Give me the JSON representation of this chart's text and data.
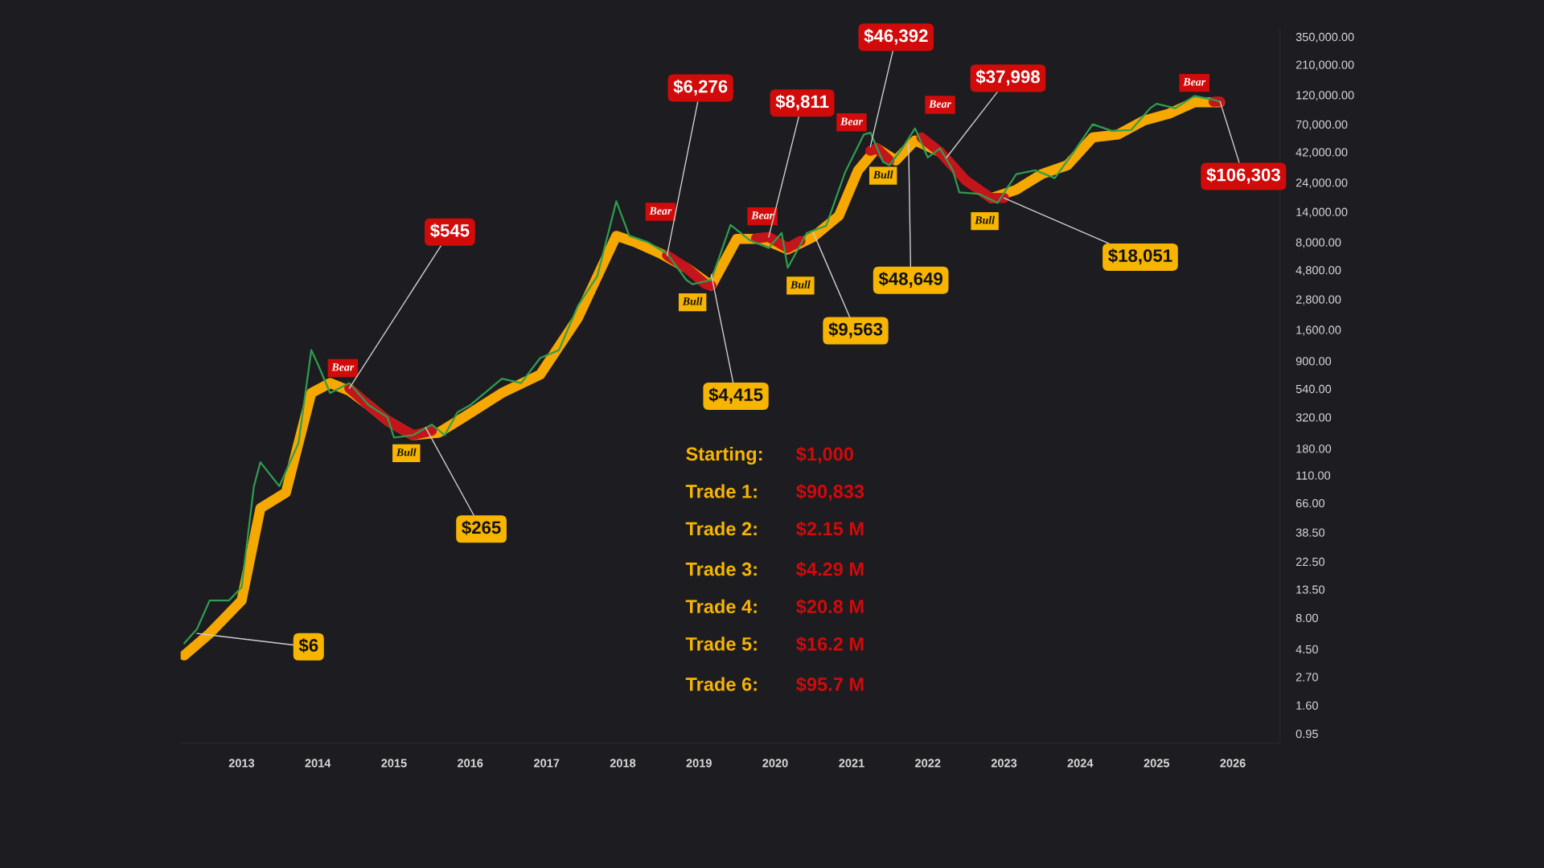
{
  "chart_data": {
    "type": "line",
    "log": "y",
    "grid": false,
    "xlim": [
      "2012-03-15",
      "2026-08-15"
    ],
    "ylim": [
      0.8,
      400000
    ],
    "xticks": [
      "2013",
      "2014",
      "2015",
      "2016",
      "2017",
      "2018",
      "2019",
      "2020",
      "2021",
      "2022",
      "2023",
      "2024",
      "2025",
      "2026"
    ],
    "yticks": [
      {
        "value": 0.95,
        "label": "0.95"
      },
      {
        "value": 1.6,
        "label": "1.60"
      },
      {
        "value": 2.7,
        "label": "2.70"
      },
      {
        "value": 4.5,
        "label": "4.50"
      },
      {
        "value": 8,
        "label": "8.00"
      },
      {
        "value": 13.5,
        "label": "13.50"
      },
      {
        "value": 22.5,
        "label": "22.50"
      },
      {
        "value": 38.5,
        "label": "38.50"
      },
      {
        "value": 66,
        "label": "66.00"
      },
      {
        "value": 110,
        "label": "110.00"
      },
      {
        "value": 180,
        "label": "180.00"
      },
      {
        "value": 320,
        "label": "320.00"
      },
      {
        "value": 540,
        "label": "540.00"
      },
      {
        "value": 900,
        "label": "900.00"
      },
      {
        "value": 1600,
        "label": "1,600.00"
      },
      {
        "value": 2800,
        "label": "2,800.00"
      },
      {
        "value": 4800,
        "label": "4,800.00"
      },
      {
        "value": 8000,
        "label": "8,000.00"
      },
      {
        "value": 14000,
        "label": "14,000.00"
      },
      {
        "value": 24000,
        "label": "24,000.00"
      },
      {
        "value": 42000,
        "label": "42,000.00"
      },
      {
        "value": 70000,
        "label": "70,000.00"
      },
      {
        "value": 120000,
        "label": "120,000.00"
      },
      {
        "value": 210000,
        "label": "210,000.00"
      },
      {
        "value": 350000,
        "label": "350,000.00"
      }
    ],
    "series": [
      {
        "color": "#2e9e4f",
        "x": [
          "2012-04",
          "2012-06",
          "2012-08",
          "2012-11",
          "2013-01",
          "2013-03",
          "2013-04",
          "2013-07",
          "2013-10",
          "2013-12",
          "2014-01",
          "2014-03",
          "2014-06",
          "2014-09",
          "2014-12",
          "2015-01",
          "2015-04",
          "2015-07",
          "2015-09",
          "2015-11",
          "2016-01",
          "2016-06",
          "2016-09",
          "2016-12",
          "2017-03",
          "2017-06",
          "2017-09",
          "2017-12",
          "2018-02",
          "2018-05",
          "2018-08",
          "2018-11",
          "2018-12",
          "2019-03",
          "2019-06",
          "2019-09",
          "2019-12",
          "2020-02",
          "2020-03",
          "2020-06",
          "2020-09",
          "2020-12",
          "2021-03",
          "2021-04",
          "2021-06",
          "2021-07",
          "2021-09",
          "2021-11",
          "2022-01",
          "2022-03",
          "2022-05",
          "2022-06",
          "2022-09",
          "2022-12",
          "2023-03",
          "2023-06",
          "2023-09",
          "2023-12",
          "2024-03",
          "2024-06",
          "2024-09",
          "2024-12",
          "2025-01",
          "2025-04",
          "2025-07",
          "2025-10",
          "2025-11"
        ],
        "values": [
          5,
          6.5,
          11,
          11,
          14,
          90,
          140,
          90,
          200,
          1100,
          850,
          500,
          600,
          400,
          320,
          220,
          230,
          280,
          230,
          350,
          400,
          650,
          600,
          950,
          1100,
          2500,
          4300,
          17000,
          9000,
          8000,
          6500,
          4000,
          3700,
          4000,
          11000,
          8300,
          7200,
          9500,
          5000,
          9500,
          10800,
          29000,
          58000,
          60000,
          35000,
          33000,
          45000,
          65000,
          38000,
          45000,
          30000,
          20000,
          19500,
          16500,
          28000,
          30000,
          26000,
          42000,
          70000,
          62000,
          63000,
          94000,
          102000,
          94000,
          118000,
          110000,
          106000
        ]
      },
      {
        "color": "#f5a800",
        "x": [
          "2012-04",
          "2012-08",
          "2013-01",
          "2013-04",
          "2013-08",
          "2013-12",
          "2014-03",
          "2014-06",
          "2014-09",
          "2014-12",
          "2015-04",
          "2015-08",
          "2015-12",
          "2016-06",
          "2016-12",
          "2017-06",
          "2017-12",
          "2018-03",
          "2018-07",
          "2018-11",
          "2019-03",
          "2019-07",
          "2019-11",
          "2020-03",
          "2020-07",
          "2020-11",
          "2021-02",
          "2021-05",
          "2021-08",
          "2021-11",
          "2022-03",
          "2022-07",
          "2022-11",
          "2023-03",
          "2023-07",
          "2023-11",
          "2024-03",
          "2024-07",
          "2024-11",
          "2025-03",
          "2025-07",
          "2025-11"
        ],
        "values": [
          4,
          6,
          11,
          60,
          80,
          500,
          600,
          520,
          400,
          300,
          230,
          240,
          320,
          500,
          700,
          2000,
          9000,
          8000,
          6500,
          5000,
          3600,
          8500,
          8500,
          7000,
          8800,
          13000,
          30000,
          45000,
          36000,
          52000,
          42000,
          null,
          18000,
          21000,
          28000,
          33000,
          55000,
          58000,
          75000,
          85000,
          105000,
          105000
        ]
      },
      {
        "color": "#c4141c",
        "x": [
          "2014-06",
          "2014-09",
          "2014-12",
          "2015-04",
          "2015-07",
          "2015-08",
          "2018-08",
          "2018-11",
          "2019-02",
          "2019-03",
          "2019-04",
          "2019-10",
          "2019-12",
          "2020-03",
          "2020-05",
          "2020-06",
          "2021-04",
          "2021-05",
          "2021-07",
          "2021-08",
          "2021-12",
          "2022-03",
          "2022-07",
          "2022-11",
          "2023-01",
          "2023-02",
          "2025-10",
          "2025-11"
        ],
        "values": [
          545,
          400,
          300,
          230,
          250,
          null,
          6276,
          5000,
          3700,
          3600,
          null,
          8600,
          8811,
          7200,
          8200,
          null,
          43000,
          45000,
          36000,
          null,
          55000,
          42000,
          25000,
          18000,
          18051,
          null,
          106000,
          106303
        ]
      }
    ],
    "annotations": [
      {
        "text": "$6",
        "x": "2012-06",
        "y": 6
      },
      {
        "text": "$545",
        "x": "2014-06",
        "y": 545
      },
      {
        "text": "$265",
        "x": "2015-06",
        "y": 265
      },
      {
        "text": "$6,276",
        "x": "2018-08",
        "y": 6276
      },
      {
        "text": "$4,415",
        "x": "2019-03",
        "y": 4415
      },
      {
        "text": "$8,811",
        "x": "2019-12",
        "y": 8811
      },
      {
        "text": "$9,563",
        "x": "2020-07",
        "y": 9563
      },
      {
        "text": "$46,392",
        "x": "2021-04",
        "y": 46392
      },
      {
        "text": "$48,649",
        "x": "2021-10",
        "y": 48649
      },
      {
        "text": "$37,998",
        "x": "2022-04",
        "y": 37998
      },
      {
        "text": "$18,051",
        "x": "2023-01",
        "y": 18051
      },
      {
        "text": "$106,303",
        "x": "2025-11",
        "y": 106303
      },
      {
        "text": "Bear",
        "x": "2014-05",
        "y": 790
      },
      {
        "text": "Bull",
        "x": "2015-03",
        "y": 165
      },
      {
        "text": "Bear",
        "x": "2018-07",
        "y": 14000
      },
      {
        "text": "Bull",
        "x": "2018-12",
        "y": 2650
      },
      {
        "text": "Bear",
        "x": "2019-11",
        "y": 12900
      },
      {
        "text": "Bull",
        "x": "2020-05",
        "y": 3600
      },
      {
        "text": "Bear",
        "x": "2021-01",
        "y": 72500
      },
      {
        "text": "Bull",
        "x": "2021-06",
        "y": 27200
      },
      {
        "text": "Bear",
        "x": "2022-03",
        "y": 100000
      },
      {
        "text": "Bull",
        "x": "2022-10",
        "y": 11800
      },
      {
        "text": "Bear",
        "x": "2025-07",
        "y": 150000
      },
      "Starting:",
      "$1,000",
      "Trade 1:",
      "$90,833",
      "Trade 2:",
      "$2.15 M",
      "Trade 3:",
      "$4.29 M",
      "Trade 4:",
      "$20.8 M",
      "Trade 5:",
      "$16.2 M",
      "Trade 6:",
      "$95.7 M"
    ]
  }
}
